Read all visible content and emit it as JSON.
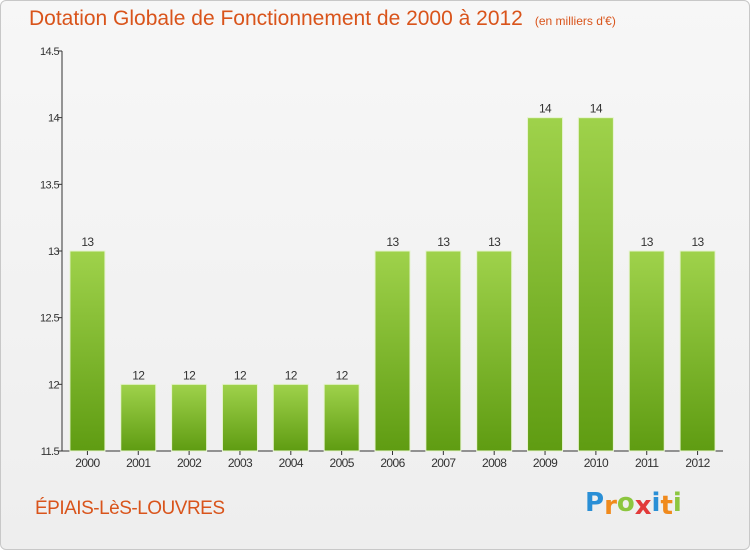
{
  "chart_data": {
    "type": "bar",
    "title": "Dotation Globale de Fonctionnement de 2000 à 2012",
    "subtitle": "(en milliers d'€)",
    "categories": [
      "2000",
      "2001",
      "2002",
      "2003",
      "2004",
      "2005",
      "2006",
      "2007",
      "2008",
      "2009",
      "2010",
      "2011",
      "2012"
    ],
    "values": [
      13,
      12,
      12,
      12,
      12,
      12,
      13,
      13,
      13,
      14,
      14,
      13,
      13
    ],
    "labels": [
      "13",
      "12",
      "12",
      "12",
      "12",
      "12",
      "13",
      "13",
      "13",
      "14",
      "14",
      "13",
      "13"
    ],
    "ylim": [
      11.5,
      14.5
    ],
    "yticks": [
      "11.5",
      "12",
      "12.5",
      "13",
      "13.5",
      "14",
      "14.5"
    ],
    "xlabel": "",
    "ylabel": "",
    "grid": false,
    "bar_color": "#7cbd2a"
  },
  "footer": {
    "city": "ÉPIAIS-LèS-LOUVRES",
    "brand_letters": [
      "P",
      "r",
      "o",
      "x",
      "i",
      "t",
      "i"
    ],
    "brand_colors": [
      "#2a8fd6",
      "#f08a1c",
      "#8cc63f",
      "#e23a3a",
      "#2a8fd6",
      "#f08a1c",
      "#8cc63f"
    ]
  },
  "colors": {
    "title": "#d9541b",
    "axis": "#333333"
  }
}
